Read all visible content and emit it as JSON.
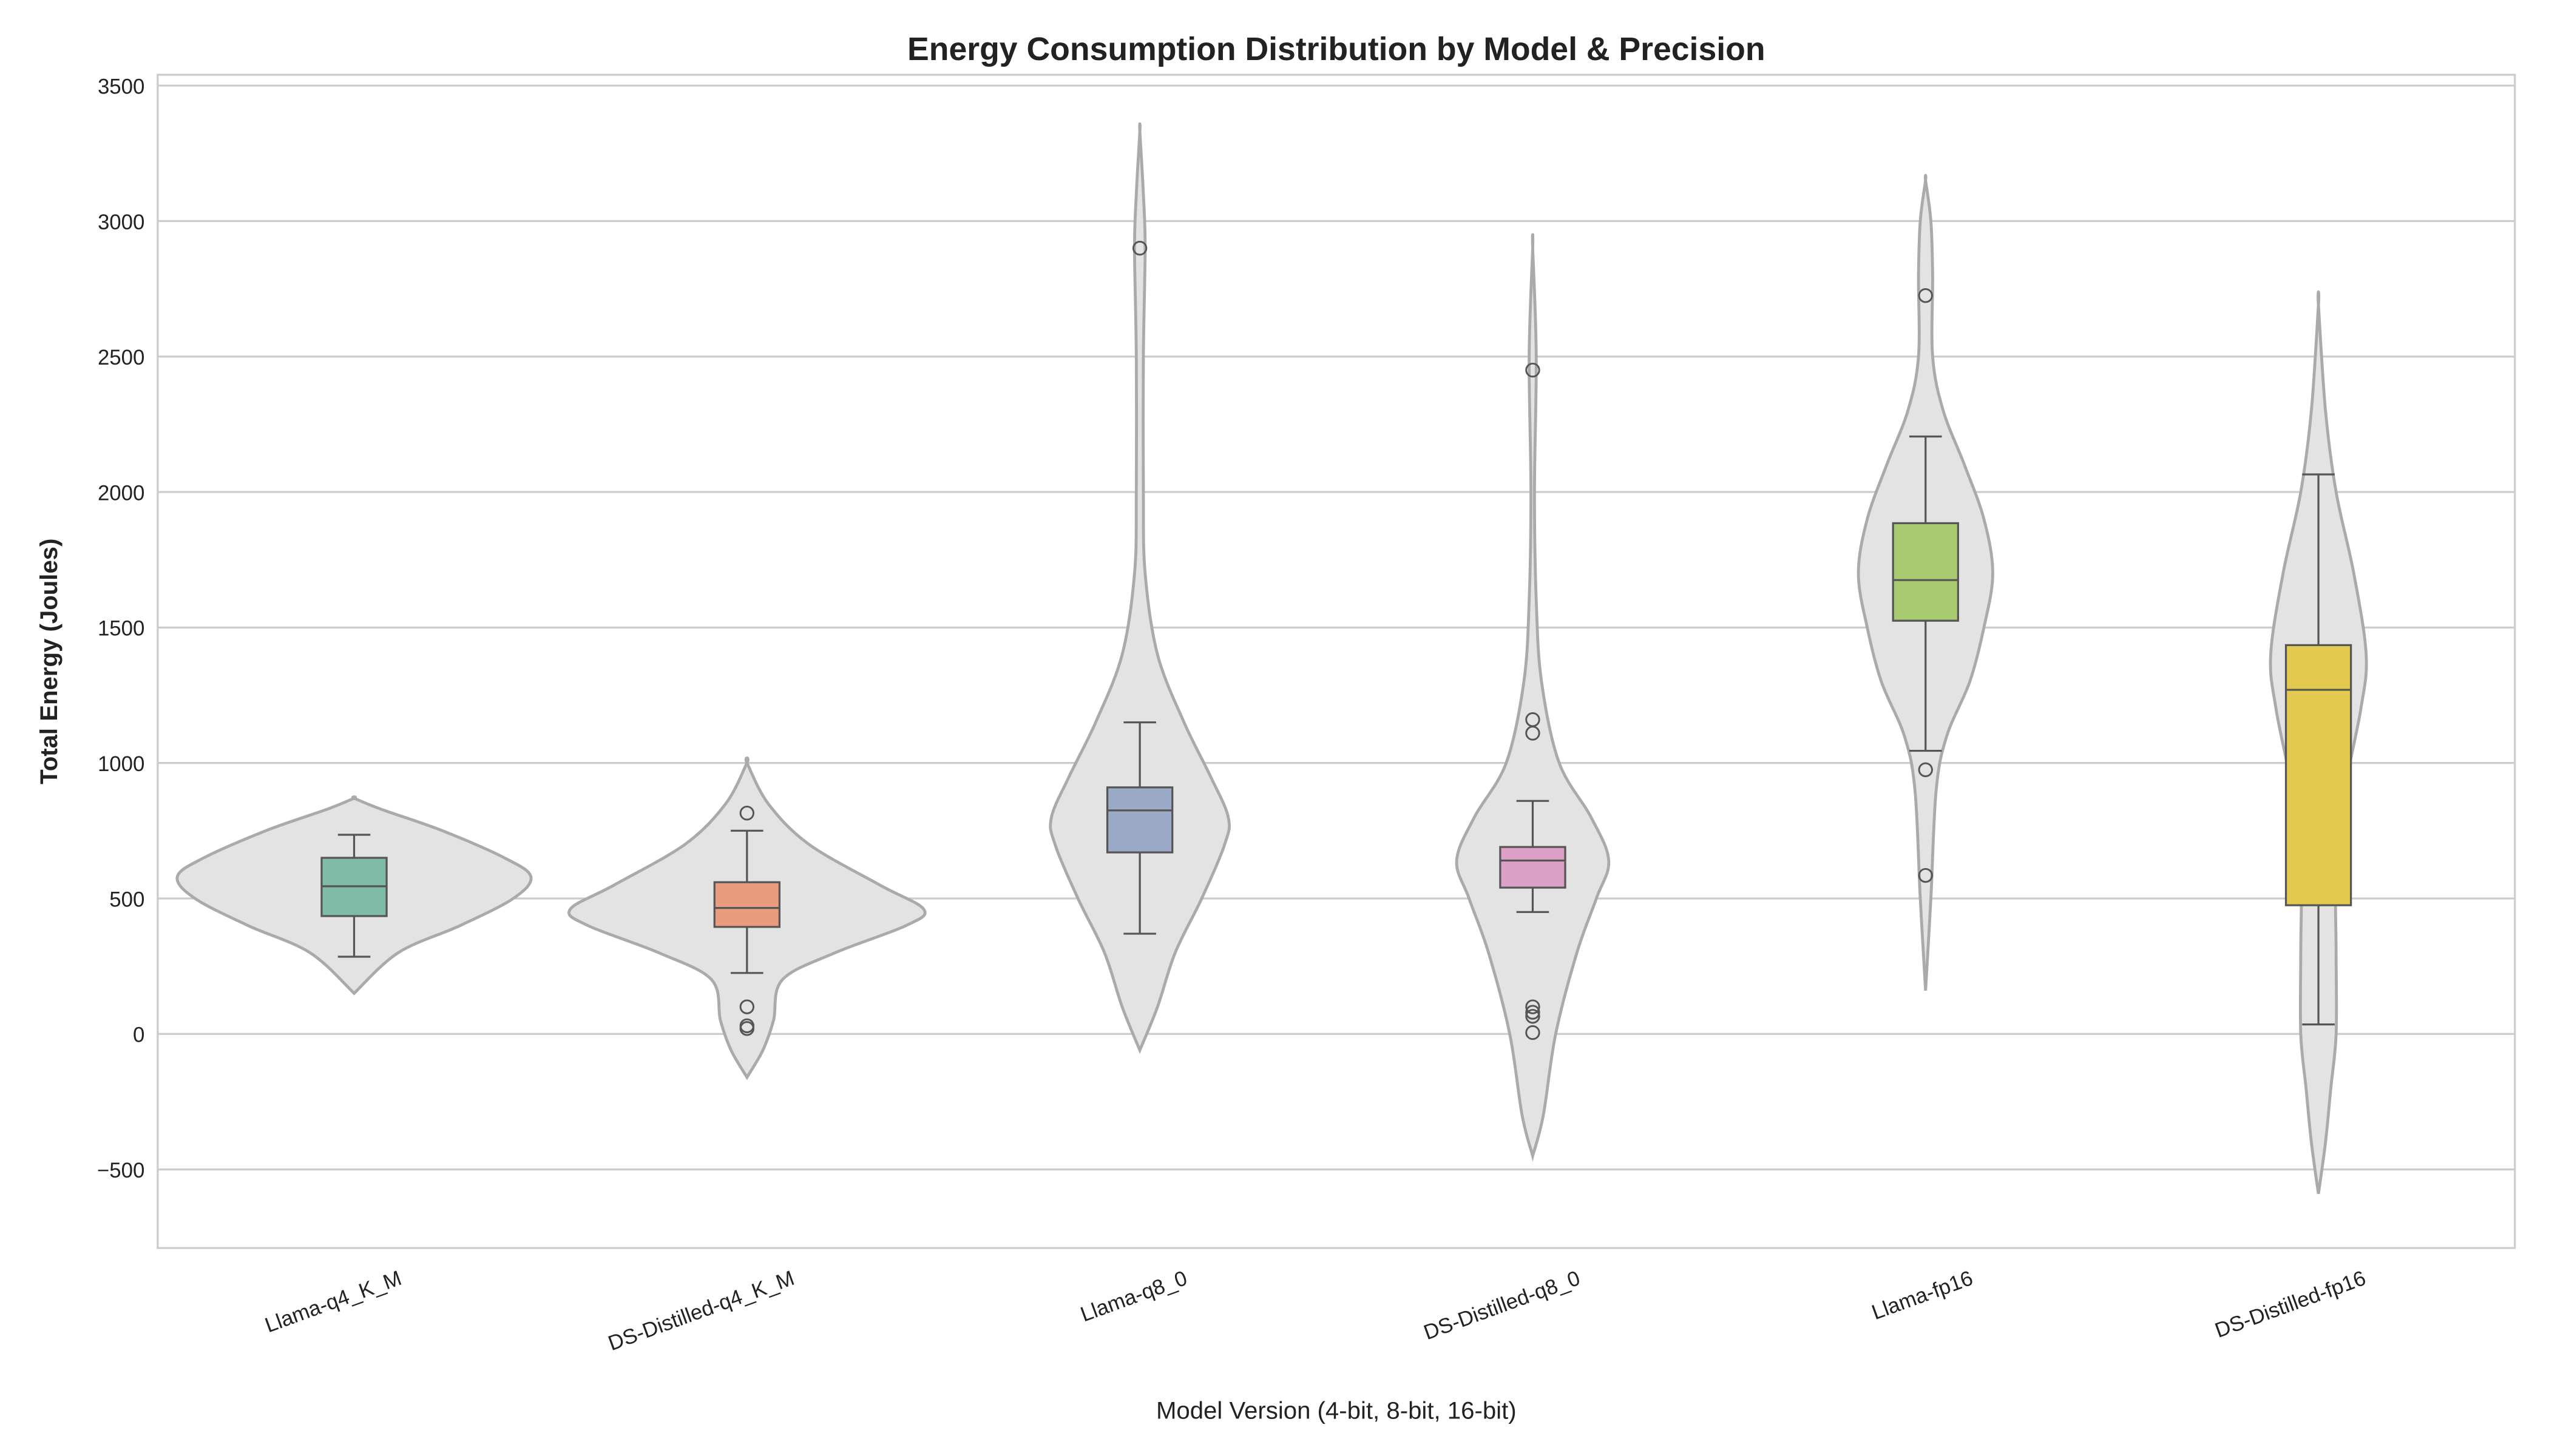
{
  "chart_data": {
    "type": "violin",
    "title": "Energy Consumption Distribution by Model & Precision",
    "xlabel": "Model Version (4-bit, 8-bit, 16-bit)",
    "ylabel": "Total Energy (Joules)",
    "ylim": [
      -790,
      3540
    ],
    "yticks": [
      -500,
      0,
      500,
      1000,
      1500,
      2000,
      2500,
      3000,
      3500
    ],
    "ytick_labels": [
      "−500",
      "0",
      "500",
      "1000",
      "1500",
      "2000",
      "2500",
      "3000",
      "3500"
    ],
    "grid": "horizontal",
    "categories": [
      "Llama-q4_K_M",
      "DS-Distilled-q4_K_M",
      "Llama-q8_0",
      "DS-Distilled-q8_0",
      "Llama-fp16",
      "DS-Distilled-fp16"
    ],
    "colors": [
      "#7fbba6",
      "#e99d7e",
      "#9aa9c6",
      "#dc9fc6",
      "#a8cb70",
      "#e4c94f"
    ],
    "violin_color": "#e3e3e3",
    "series": [
      {
        "category": "Llama-q4_K_M",
        "whisker_low": 285,
        "q1": 435,
        "median": 545,
        "q3": 650,
        "whisker_high": 735,
        "outliers": [],
        "density": [
          [
            150,
            0
          ],
          [
            300,
            0.25
          ],
          [
            400,
            0.6
          ],
          [
            500,
            0.9
          ],
          [
            580,
            1.0
          ],
          [
            650,
            0.85
          ],
          [
            750,
            0.5
          ],
          [
            830,
            0.15
          ],
          [
            870,
            0
          ]
        ]
      },
      {
        "category": "DS-Distilled-q4_K_M",
        "whisker_low": 225,
        "q1": 395,
        "median": 465,
        "q3": 560,
        "whisker_high": 750,
        "outliers": [
          815,
          100,
          30,
          20
        ],
        "density": [
          [
            -160,
            0
          ],
          [
            -60,
            0.09
          ],
          [
            50,
            0.15
          ],
          [
            200,
            0.2
          ],
          [
            300,
            0.5
          ],
          [
            400,
            0.9
          ],
          [
            460,
            1.0
          ],
          [
            550,
            0.75
          ],
          [
            700,
            0.35
          ],
          [
            850,
            0.12
          ],
          [
            1000,
            0
          ]
        ]
      },
      {
        "category": "Llama-q8_0",
        "whisker_low": 370,
        "q1": 670,
        "median": 825,
        "q3": 910,
        "whisker_high": 1150,
        "outliers": [
          2900
        ],
        "density": [
          [
            -60,
            0
          ],
          [
            100,
            0.1
          ],
          [
            300,
            0.2
          ],
          [
            500,
            0.35
          ],
          [
            700,
            0.48
          ],
          [
            800,
            0.5
          ],
          [
            950,
            0.4
          ],
          [
            1150,
            0.25
          ],
          [
            1400,
            0.1
          ],
          [
            1700,
            0.03
          ],
          [
            2000,
            0.02
          ],
          [
            2500,
            0.02
          ],
          [
            2900,
            0.03
          ],
          [
            3100,
            0.02
          ],
          [
            3330,
            0
          ]
        ]
      },
      {
        "category": "DS-Distilled-q8_0",
        "whisker_low": 450,
        "q1": 540,
        "median": 640,
        "q3": 690,
        "whisker_high": 860,
        "outliers": [
          2450,
          1160,
          1110,
          100,
          80,
          65,
          5
        ],
        "density": [
          [
            -450,
            0
          ],
          [
            -300,
            0.06
          ],
          [
            0,
            0.13
          ],
          [
            300,
            0.25
          ],
          [
            500,
            0.36
          ],
          [
            640,
            0.43
          ],
          [
            800,
            0.33
          ],
          [
            1000,
            0.15
          ],
          [
            1300,
            0.05
          ],
          [
            1600,
            0.02
          ],
          [
            2000,
            0.01
          ],
          [
            2500,
            0.02
          ],
          [
            2900,
            0
          ]
        ]
      },
      {
        "category": "Llama-fp16",
        "whisker_low": 1045,
        "q1": 1525,
        "median": 1675,
        "q3": 1885,
        "whisker_high": 2205,
        "outliers": [
          2725,
          975,
          585
        ],
        "density": [
          [
            160,
            0
          ],
          [
            500,
            0.03
          ],
          [
            900,
            0.06
          ],
          [
            1100,
            0.12
          ],
          [
            1300,
            0.25
          ],
          [
            1500,
            0.33
          ],
          [
            1700,
            0.38
          ],
          [
            1900,
            0.33
          ],
          [
            2100,
            0.22
          ],
          [
            2300,
            0.1
          ],
          [
            2500,
            0.04
          ],
          [
            2800,
            0.04
          ],
          [
            3000,
            0.03
          ],
          [
            3150,
            0
          ]
        ]
      },
      {
        "category": "DS-Distilled-fp16",
        "whisker_low": 35,
        "q1": 475,
        "median": 1270,
        "q3": 1435,
        "whisker_high": 2065,
        "outliers": [],
        "density": [
          [
            -590,
            0
          ],
          [
            -400,
            0.04
          ],
          [
            -200,
            0.07
          ],
          [
            0,
            0.1
          ],
          [
            300,
            0.1
          ],
          [
            600,
            0.1
          ],
          [
            900,
            0.15
          ],
          [
            1200,
            0.24
          ],
          [
            1400,
            0.27
          ],
          [
            1700,
            0.2
          ],
          [
            2000,
            0.1
          ],
          [
            2300,
            0.04
          ],
          [
            2690,
            0
          ]
        ]
      }
    ]
  }
}
